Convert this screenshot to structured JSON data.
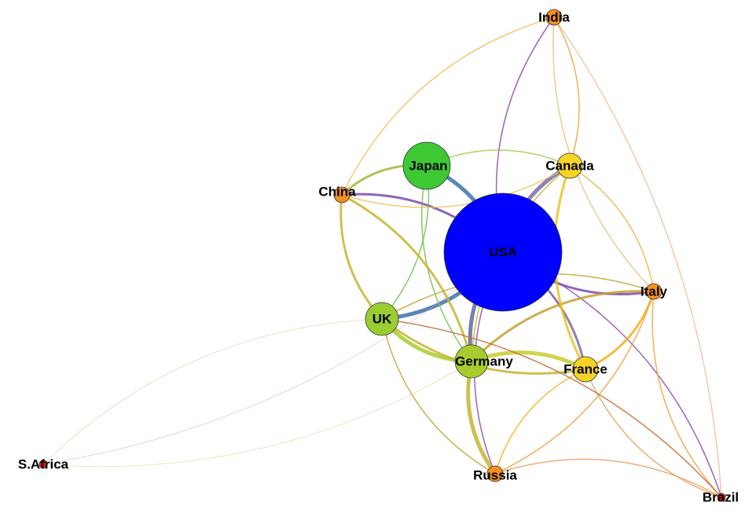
{
  "diagram": {
    "type": "network-graph",
    "nodes": [
      {
        "id": "usa",
        "label": "USA",
        "color": "#0000ff",
        "size": "largest"
      },
      {
        "id": "japan",
        "label": "Japan",
        "color": "#3ec934",
        "size": "large"
      },
      {
        "id": "uk",
        "label": "UK",
        "color": "#9acd32",
        "size": "medium"
      },
      {
        "id": "germany",
        "label": "Germany",
        "color": "#a8cc2e",
        "size": "medium"
      },
      {
        "id": "canada",
        "label": "Canada",
        "color": "#f5d327",
        "size": "small"
      },
      {
        "id": "france",
        "label": "France",
        "color": "#f5d327",
        "size": "small"
      },
      {
        "id": "india",
        "label": "India",
        "color": "#f5901e",
        "size": "tiny"
      },
      {
        "id": "china",
        "label": "China",
        "color": "#f5901e",
        "size": "tiny"
      },
      {
        "id": "italy",
        "label": "Italy",
        "color": "#f5901e",
        "size": "tiny"
      },
      {
        "id": "russia",
        "label": "Russia",
        "color": "#f5901e",
        "size": "tiny"
      },
      {
        "id": "safrica",
        "label": "S.Africa",
        "color": "#e31a1a",
        "size": "dot"
      },
      {
        "id": "brazil",
        "label": "Brazil",
        "color": "#e31a1a",
        "size": "dot"
      }
    ],
    "edges": [
      {
        "source": "usa",
        "target": "japan",
        "color": "#3d72a8",
        "weight": "heavy"
      },
      {
        "source": "usa",
        "target": "uk",
        "color": "#3d72a8",
        "weight": "heavy"
      },
      {
        "source": "usa",
        "target": "germany",
        "color": "#5e6aa0",
        "weight": "heavy"
      },
      {
        "source": "usa",
        "target": "canada",
        "color": "#7b6aa8",
        "weight": "heavy"
      },
      {
        "source": "usa",
        "target": "italy",
        "color": "#7b4aa8",
        "weight": "medium"
      },
      {
        "source": "usa",
        "target": "france",
        "color": "#7b6aa0",
        "weight": "medium"
      },
      {
        "source": "usa",
        "target": "china",
        "color": "#7b4aa8",
        "weight": "medium"
      },
      {
        "source": "usa",
        "target": "india",
        "color": "#8a4aa8",
        "weight": "light"
      },
      {
        "source": "usa",
        "target": "russia",
        "color": "#8a4aa8",
        "weight": "light"
      },
      {
        "source": "usa",
        "target": "brazil",
        "color": "#8a4aa8",
        "weight": "light"
      },
      {
        "source": "japan",
        "target": "china",
        "color": "#a8b33a",
        "weight": "medium"
      },
      {
        "source": "japan",
        "target": "uk",
        "color": "#6cc24a",
        "weight": "light"
      },
      {
        "source": "japan",
        "target": "germany",
        "color": "#6cc24a",
        "weight": "light"
      },
      {
        "source": "japan",
        "target": "canada",
        "color": "#9ccc4a",
        "weight": "light"
      },
      {
        "source": "uk",
        "target": "germany",
        "color": "#a8cc2e",
        "weight": "heavy"
      },
      {
        "source": "uk",
        "target": "china",
        "color": "#c5b530",
        "weight": "medium"
      },
      {
        "source": "uk",
        "target": "france",
        "color": "#c5b530",
        "weight": "medium"
      },
      {
        "source": "uk",
        "target": "italy",
        "color": "#c5a030",
        "weight": "light"
      },
      {
        "source": "uk",
        "target": "russia",
        "color": "#c5a030",
        "weight": "light"
      },
      {
        "source": "germany",
        "target": "france",
        "color": "#c5cc2e",
        "weight": "heavy"
      },
      {
        "source": "germany",
        "target": "russia",
        "color": "#c5b530",
        "weight": "heavy"
      },
      {
        "source": "germany",
        "target": "italy",
        "color": "#c5a030",
        "weight": "medium"
      },
      {
        "source": "germany",
        "target": "china",
        "color": "#c5b530",
        "weight": "medium"
      },
      {
        "source": "germany",
        "target": "canada",
        "color": "#c5b530",
        "weight": "light"
      },
      {
        "source": "france",
        "target": "italy",
        "color": "#f0b020",
        "weight": "medium"
      },
      {
        "source": "france",
        "target": "canada",
        "color": "#f0c020",
        "weight": "medium"
      },
      {
        "source": "france",
        "target": "russia",
        "color": "#f0b020",
        "weight": "light"
      },
      {
        "source": "canada",
        "target": "italy",
        "color": "#f0b040",
        "weight": "light"
      },
      {
        "source": "canada",
        "target": "india",
        "color": "#f0a040",
        "weight": "light"
      },
      {
        "source": "china",
        "target": "india",
        "color": "#f0c060",
        "weight": "light"
      },
      {
        "source": "china",
        "target": "canada",
        "color": "#f0c060",
        "weight": "light"
      },
      {
        "source": "italy",
        "target": "russia",
        "color": "#f0a040",
        "weight": "light"
      },
      {
        "source": "italy",
        "target": "brazil",
        "color": "#f0a040",
        "weight": "light"
      },
      {
        "source": "russia",
        "target": "brazil",
        "color": "#e8a060",
        "weight": "light"
      },
      {
        "source": "france",
        "target": "brazil",
        "color": "#e8a060",
        "weight": "light"
      },
      {
        "source": "uk",
        "target": "brazil",
        "color": "#c56a30",
        "weight": "light"
      },
      {
        "source": "india",
        "target": "italy",
        "color": "#f0c080",
        "weight": "light"
      },
      {
        "source": "india",
        "target": "brazil",
        "color": "#f0c0a0",
        "weight": "light"
      },
      {
        "source": "safrica",
        "target": "usa",
        "color": "#d0a0b0",
        "weight": "hairline"
      },
      {
        "source": "safrica",
        "target": "uk",
        "color": "#e0b090",
        "weight": "hairline"
      },
      {
        "source": "safrica",
        "target": "germany",
        "color": "#e0c090",
        "weight": "hairline"
      }
    ]
  }
}
